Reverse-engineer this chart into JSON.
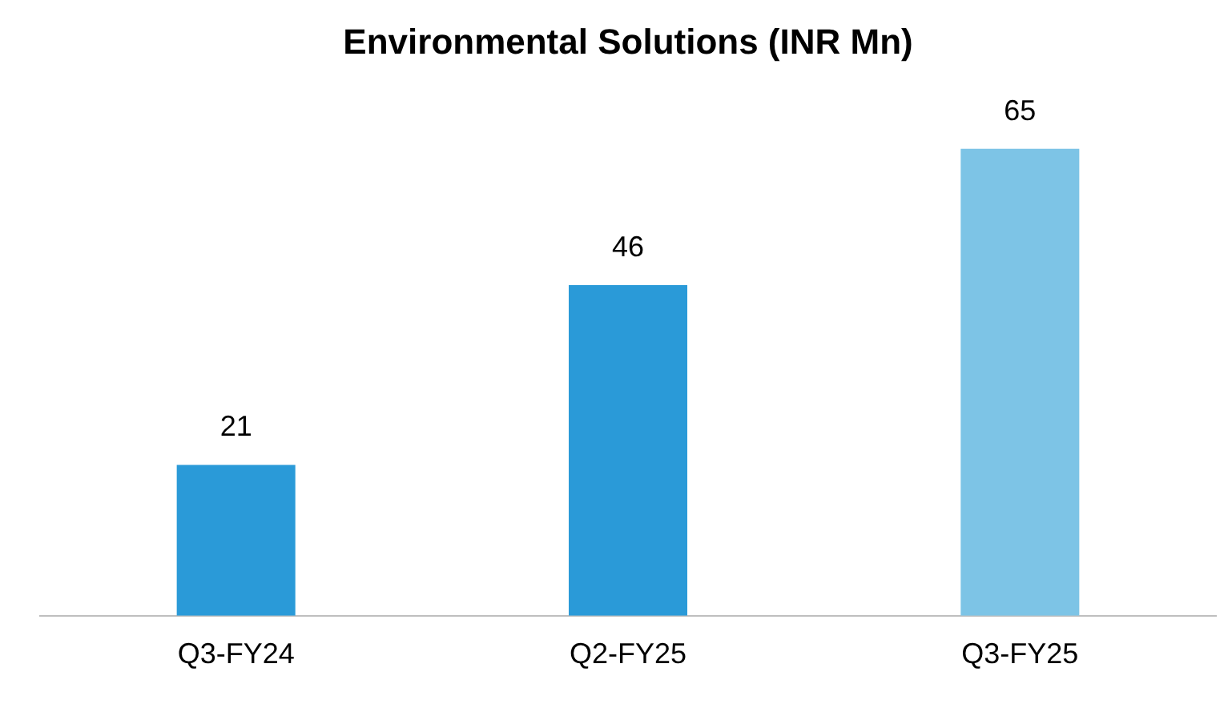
{
  "chart_data": {
    "type": "bar",
    "title": "Environmental Solutions (INR Mn)",
    "categories": [
      "Q3-FY24",
      "Q2-FY25",
      "Q3-FY25"
    ],
    "values": [
      21,
      46,
      65
    ],
    "colors": [
      "#2a9ad8",
      "#2a9ad8",
      "#7dc4e6"
    ],
    "data_labels": true,
    "grid": false,
    "legend": false
  }
}
